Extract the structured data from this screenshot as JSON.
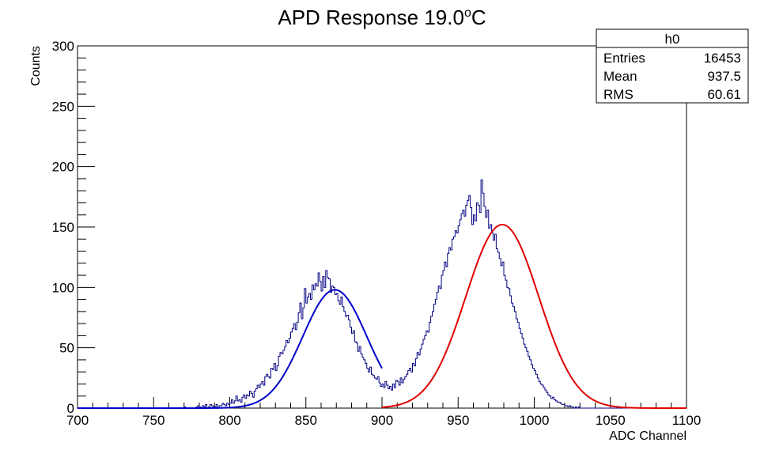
{
  "chart_data": {
    "type": "histogram",
    "title": "APD Response 19.0",
    "title_superscript": "o",
    "title_unit": "C",
    "xlabel": "ADC Channel",
    "ylabel": "Counts",
    "xlim": [
      700,
      1100
    ],
    "ylim": [
      0,
      300
    ],
    "x_ticks": [
      "700",
      "750",
      "800",
      "850",
      "900",
      "950",
      "1000",
      "1050",
      "1100"
    ],
    "y_ticks": [
      "0",
      "50",
      "100",
      "150",
      "200",
      "250",
      "300"
    ],
    "bin_width": 1,
    "histogram": {
      "color": "#000080",
      "x_start": 700,
      "counts": [
        0,
        0,
        0,
        0,
        0,
        0,
        0,
        0,
        0,
        0,
        0,
        0,
        0,
        0,
        0,
        0,
        0,
        0,
        0,
        0,
        0,
        0,
        0,
        0,
        0,
        0,
        0,
        0,
        0,
        0,
        0,
        0,
        0,
        0,
        0,
        0,
        0,
        0,
        0,
        0,
        0,
        0,
        0,
        0,
        0,
        0,
        0,
        0,
        0,
        0,
        0,
        0,
        0,
        0,
        0,
        0,
        0,
        0,
        0,
        0,
        0,
        0,
        0,
        0,
        0,
        0,
        0,
        0,
        0,
        0,
        1,
        0,
        0,
        0,
        0,
        0,
        0,
        0,
        1,
        2,
        1,
        0,
        2,
        1,
        3,
        0,
        1,
        3,
        2,
        1,
        1,
        3,
        0,
        2,
        2,
        4,
        3,
        2,
        4,
        3,
        4,
        7,
        4,
        6,
        10,
        6,
        7,
        5,
        9,
        11,
        8,
        11,
        10,
        14,
        12,
        9,
        14,
        16,
        19,
        17,
        20,
        22,
        19,
        26,
        28,
        26,
        25,
        33,
        32,
        37,
        31,
        35,
        43,
        46,
        45,
        48,
        51,
        56,
        54,
        58,
        63,
        66,
        70,
        65,
        71,
        79,
        87,
        74,
        83,
        99,
        87,
        92,
        95,
        90,
        102,
        98,
        103,
        101,
        112,
        105,
        97,
        109,
        100,
        114,
        108,
        107,
        96,
        101,
        100,
        94,
        95,
        89,
        86,
        92,
        84,
        80,
        76,
        77,
        73,
        67,
        62,
        64,
        55,
        54,
        47,
        51,
        45,
        42,
        40,
        37,
        33,
        30,
        34,
        28,
        27,
        25,
        24,
        26,
        21,
        18,
        20,
        17,
        22,
        19,
        16,
        18,
        15,
        20,
        17,
        23,
        22,
        19,
        25,
        21,
        24,
        26,
        28,
        31,
        33,
        30,
        37,
        35,
        41,
        46,
        44,
        49,
        53,
        57,
        60,
        64,
        63,
        71,
        76,
        80,
        86,
        90,
        96,
        101,
        99,
        110,
        114,
        121,
        117,
        128,
        133,
        131,
        140,
        142,
        147,
        145,
        151,
        156,
        161,
        164,
        159,
        168,
        172,
        176,
        166,
        152,
        160,
        155,
        170,
        168,
        162,
        189,
        178,
        167,
        158,
        164,
        149,
        152,
        145,
        139,
        144,
        132,
        129,
        124,
        118,
        121,
        110,
        106,
        100,
        99,
        93,
        87,
        84,
        80,
        74,
        71,
        66,
        62,
        58,
        53,
        50,
        47,
        43,
        40,
        36,
        33,
        31,
        28,
        25,
        22,
        20,
        19,
        17,
        15,
        13,
        11,
        10,
        8,
        9,
        7,
        6,
        5,
        5,
        4,
        3,
        3,
        2,
        2,
        1,
        2,
        1,
        1,
        0,
        1,
        0,
        1,
        0,
        0,
        0,
        0,
        0,
        0,
        0,
        0,
        0,
        0,
        0,
        0,
        0,
        0,
        0,
        0,
        0,
        0,
        0,
        0,
        0,
        0,
        0,
        0,
        0,
        0,
        0,
        0,
        0,
        0,
        0,
        0,
        0,
        0,
        0,
        0,
        0,
        0,
        0,
        0,
        0,
        0,
        0,
        0,
        0,
        0,
        0,
        0,
        0,
        0,
        0,
        0,
        0
      ]
    },
    "fits": [
      {
        "color": "#0000cc",
        "constant": 98,
        "mean": 869,
        "sigma": 21,
        "x_range": [
          700,
          900
        ]
      },
      {
        "color": "#e00000",
        "constant": 152,
        "mean": 979,
        "sigma": 24,
        "x_range": [
          900,
          1100
        ]
      }
    ],
    "stats_box": {
      "name": "h0",
      "rows": [
        {
          "label": "Entries",
          "value": "16453"
        },
        {
          "label": "Mean",
          "value": "937.5"
        },
        {
          "label": "RMS",
          "value": "60.61"
        }
      ]
    },
    "grid": false,
    "legend": "top-right"
  }
}
